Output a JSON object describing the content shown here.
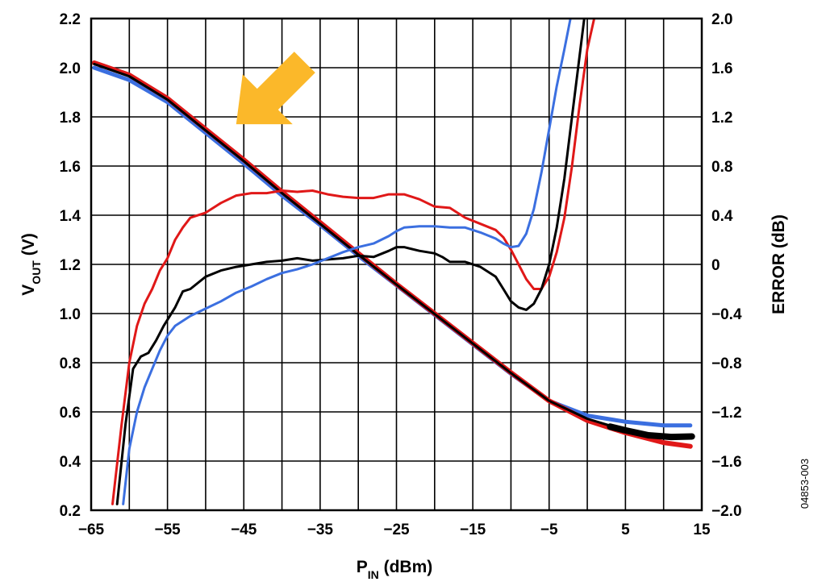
{
  "chart_data": {
    "type": "line",
    "x_axis": {
      "label": "P",
      "label_sub": "IN",
      "label_suffix": " (dBm)",
      "range": [
        -65,
        15
      ],
      "ticks": [
        -65,
        -55,
        -45,
        -35,
        -25,
        -15,
        -5,
        5,
        15
      ],
      "tick_labels": [
        "−65",
        "−55",
        "−45",
        "−35",
        "−25",
        "−15",
        "−5",
        "5",
        "15"
      ]
    },
    "y_left": {
      "label": "V",
      "label_sub": "OUT",
      "label_suffix": " (V)",
      "range": [
        0.2,
        2.2
      ],
      "ticks": [
        0.2,
        0.4,
        0.6,
        0.8,
        1.0,
        1.2,
        1.4,
        1.6,
        1.8,
        2.0,
        2.2
      ],
      "tick_labels": [
        "0.2",
        "0.4",
        "0.6",
        "0.8",
        "1.0",
        "1.2",
        "1.4",
        "1.6",
        "1.8",
        "2.0",
        "2.2"
      ]
    },
    "y_right": {
      "label": "ERROR (dB)",
      "range": [
        -2.0,
        2.0
      ],
      "ticks": [
        -2.0,
        -1.6,
        -1.2,
        -0.8,
        -0.4,
        0,
        0.4,
        0.8,
        1.2,
        1.6,
        2.0
      ],
      "tick_labels": [
        "−2.0",
        "−1.6",
        "−1.2",
        "−0.8",
        "−0.4",
        "0",
        "0.4",
        "0.8",
        "1.2",
        "1.6",
        "2.0"
      ]
    },
    "grid": true,
    "figure_id": "04853-003",
    "annotation": {
      "type": "arrow",
      "color": "#FBB82A",
      "x": -46,
      "y": 1.77
    },
    "series": [
      {
        "axis": "left",
        "color": "#3B6FE0",
        "width": 5,
        "points": [
          [
            -64.6,
            2.0
          ],
          [
            -60,
            1.95
          ],
          [
            -55,
            1.86
          ],
          [
            -50,
            1.735
          ],
          [
            -45,
            1.61
          ],
          [
            -40,
            1.48
          ],
          [
            -35,
            1.36
          ],
          [
            -30,
            1.235
          ],
          [
            -25,
            1.115
          ],
          [
            -20,
            0.995
          ],
          [
            -15,
            0.875
          ],
          [
            -10,
            0.755
          ],
          [
            -5,
            0.645
          ],
          [
            0,
            0.585
          ],
          [
            5,
            0.56
          ],
          [
            10,
            0.545
          ],
          [
            13.5,
            0.545
          ]
        ]
      },
      {
        "axis": "left",
        "color": "#E01818",
        "width": 6,
        "points": [
          [
            -64.6,
            2.02
          ],
          [
            -60,
            1.97
          ],
          [
            -55,
            1.875
          ],
          [
            -50,
            1.75
          ],
          [
            -45,
            1.625
          ],
          [
            -40,
            1.495
          ],
          [
            -35,
            1.37
          ],
          [
            -30,
            1.245
          ],
          [
            -25,
            1.12
          ],
          [
            -20,
            1.0
          ],
          [
            -15,
            0.88
          ],
          [
            -10,
            0.76
          ],
          [
            -5,
            0.645
          ],
          [
            0,
            0.565
          ],
          [
            5,
            0.515
          ],
          [
            10,
            0.475
          ],
          [
            13.5,
            0.46
          ]
        ]
      },
      {
        "axis": "left",
        "color": "#000000",
        "width": 3,
        "points": [
          [
            -64.6,
            2.015
          ],
          [
            -60,
            1.965
          ],
          [
            -55,
            1.87
          ],
          [
            -50,
            1.745
          ],
          [
            -45,
            1.62
          ],
          [
            -40,
            1.49
          ],
          [
            -35,
            1.365
          ],
          [
            -30,
            1.24
          ],
          [
            -25,
            1.118
          ],
          [
            -20,
            0.998
          ],
          [
            -15,
            0.878
          ],
          [
            -10,
            0.758
          ],
          [
            -5,
            0.645
          ],
          [
            0,
            0.572
          ],
          [
            5,
            0.525
          ],
          [
            10,
            0.5
          ],
          [
            13.5,
            0.5
          ]
        ]
      },
      {
        "axis": "left",
        "color": "#000000",
        "width": 8,
        "points": [
          [
            3,
            0.54
          ],
          [
            5,
            0.525
          ],
          [
            8,
            0.505
          ],
          [
            11,
            0.498
          ],
          [
            13.7,
            0.5
          ]
        ]
      },
      {
        "axis": "right",
        "color": "#E01818",
        "width": 3,
        "points": [
          [
            -62.2,
            -1.95
          ],
          [
            -61,
            -1.3
          ],
          [
            -60,
            -0.8
          ],
          [
            -59,
            -0.5
          ],
          [
            -58,
            -0.32
          ],
          [
            -57,
            -0.2
          ],
          [
            -56,
            -0.05
          ],
          [
            -55,
            0.05
          ],
          [
            -54,
            0.2
          ],
          [
            -53,
            0.3
          ],
          [
            -52,
            0.38
          ],
          [
            -50,
            0.42
          ],
          [
            -48,
            0.5
          ],
          [
            -46,
            0.56
          ],
          [
            -44,
            0.58
          ],
          [
            -42,
            0.58
          ],
          [
            -40,
            0.6
          ],
          [
            -38,
            0.59
          ],
          [
            -36,
            0.6
          ],
          [
            -34,
            0.57
          ],
          [
            -32,
            0.55
          ],
          [
            -30,
            0.54
          ],
          [
            -28,
            0.54
          ],
          [
            -26,
            0.57
          ],
          [
            -24,
            0.57
          ],
          [
            -22,
            0.53
          ],
          [
            -20,
            0.47
          ],
          [
            -18,
            0.46
          ],
          [
            -16,
            0.38
          ],
          [
            -14,
            0.33
          ],
          [
            -12,
            0.28
          ],
          [
            -11,
            0.22
          ],
          [
            -10,
            0.12
          ],
          [
            -9,
            0.0
          ],
          [
            -8,
            -0.12
          ],
          [
            -7,
            -0.2
          ],
          [
            -6,
            -0.2
          ],
          [
            -5,
            -0.1
          ],
          [
            -4,
            0.1
          ],
          [
            -3,
            0.38
          ],
          [
            -2,
            0.8
          ],
          [
            -1,
            1.3
          ],
          [
            0,
            1.75
          ],
          [
            0.9,
            2.0
          ]
        ]
      },
      {
        "axis": "right",
        "color": "#000000",
        "width": 3,
        "points": [
          [
            -61.6,
            -1.95
          ],
          [
            -60.5,
            -1.3
          ],
          [
            -59.5,
            -0.85
          ],
          [
            -58.5,
            -0.75
          ],
          [
            -57.5,
            -0.72
          ],
          [
            -56.5,
            -0.62
          ],
          [
            -55.5,
            -0.5
          ],
          [
            -54,
            -0.35
          ],
          [
            -53,
            -0.22
          ],
          [
            -52,
            -0.2
          ],
          [
            -50,
            -0.1
          ],
          [
            -48,
            -0.05
          ],
          [
            -46,
            -0.02
          ],
          [
            -44,
            0.0
          ],
          [
            -42,
            0.02
          ],
          [
            -40,
            0.03
          ],
          [
            -38,
            0.05
          ],
          [
            -36,
            0.03
          ],
          [
            -34,
            0.04
          ],
          [
            -32,
            0.05
          ],
          [
            -30,
            0.07
          ],
          [
            -28,
            0.06
          ],
          [
            -26,
            0.11
          ],
          [
            -25,
            0.14
          ],
          [
            -24,
            0.14
          ],
          [
            -22,
            0.11
          ],
          [
            -20,
            0.09
          ],
          [
            -19,
            0.06
          ],
          [
            -18,
            0.02
          ],
          [
            -16,
            0.02
          ],
          [
            -14,
            -0.02
          ],
          [
            -12,
            -0.1
          ],
          [
            -11,
            -0.2
          ],
          [
            -10,
            -0.3
          ],
          [
            -9,
            -0.35
          ],
          [
            -8,
            -0.37
          ],
          [
            -7,
            -0.32
          ],
          [
            -6,
            -0.2
          ],
          [
            -5,
            0.0
          ],
          [
            -4,
            0.3
          ],
          [
            -3,
            0.7
          ],
          [
            -2,
            1.2
          ],
          [
            -1,
            1.7
          ],
          [
            -0.4,
            2.0
          ]
        ]
      },
      {
        "axis": "right",
        "color": "#3B6FE0",
        "width": 3,
        "points": [
          [
            -60.8,
            -1.95
          ],
          [
            -60,
            -1.5
          ],
          [
            -59,
            -1.2
          ],
          [
            -58,
            -1.0
          ],
          [
            -57,
            -0.85
          ],
          [
            -56,
            -0.7
          ],
          [
            -55,
            -0.58
          ],
          [
            -54,
            -0.5
          ],
          [
            -52,
            -0.42
          ],
          [
            -50,
            -0.36
          ],
          [
            -48,
            -0.3
          ],
          [
            -46,
            -0.23
          ],
          [
            -44,
            -0.18
          ],
          [
            -42,
            -0.12
          ],
          [
            -40,
            -0.07
          ],
          [
            -38,
            -0.04
          ],
          [
            -36,
            0.0
          ],
          [
            -34,
            0.05
          ],
          [
            -32,
            0.1
          ],
          [
            -30,
            0.14
          ],
          [
            -28,
            0.17
          ],
          [
            -26,
            0.23
          ],
          [
            -25,
            0.27
          ],
          [
            -24,
            0.3
          ],
          [
            -22,
            0.31
          ],
          [
            -20,
            0.31
          ],
          [
            -18,
            0.3
          ],
          [
            -16,
            0.3
          ],
          [
            -14,
            0.26
          ],
          [
            -12,
            0.21
          ],
          [
            -11,
            0.17
          ],
          [
            -10,
            0.14
          ],
          [
            -9,
            0.15
          ],
          [
            -8,
            0.25
          ],
          [
            -7,
            0.45
          ],
          [
            -6,
            0.75
          ],
          [
            -5,
            1.1
          ],
          [
            -4,
            1.45
          ],
          [
            -3,
            1.75
          ],
          [
            -2.2,
            2.0
          ]
        ]
      }
    ]
  }
}
